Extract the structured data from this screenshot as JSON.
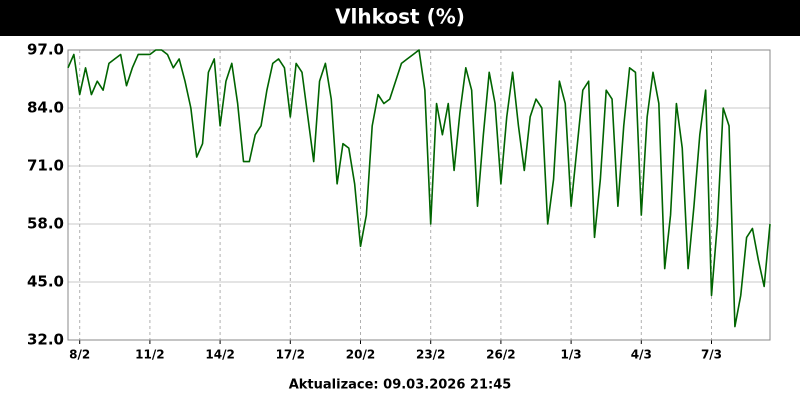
{
  "chart_data": {
    "type": "line",
    "title": "Vlhkost (%)",
    "footer": "Aktualizace: 09.03.2026 21:45",
    "grid": true,
    "ylim": [
      32,
      97
    ],
    "yticks": [
      {
        "value": 32,
        "label": "32.0"
      },
      {
        "value": 45,
        "label": "45.0"
      },
      {
        "value": 58,
        "label": "58.0"
      },
      {
        "value": 71,
        "label": "71.0"
      },
      {
        "value": 84,
        "label": "84.0"
      },
      {
        "value": 97,
        "label": "97.0"
      }
    ],
    "categories": [
      null,
      null,
      "8/2",
      null,
      null,
      null,
      null,
      null,
      null,
      null,
      null,
      null,
      null,
      null,
      "11/2",
      null,
      null,
      null,
      null,
      null,
      null,
      null,
      null,
      null,
      null,
      null,
      "14/2",
      null,
      null,
      null,
      null,
      null,
      null,
      null,
      null,
      null,
      null,
      null,
      "17/2",
      null,
      null,
      null,
      null,
      null,
      null,
      null,
      null,
      null,
      null,
      null,
      "20/2",
      null,
      null,
      null,
      null,
      null,
      null,
      null,
      null,
      null,
      null,
      null,
      "23/2",
      null,
      null,
      null,
      null,
      null,
      null,
      null,
      null,
      null,
      null,
      null,
      "26/2",
      null,
      null,
      null,
      null,
      null,
      null,
      null,
      null,
      null,
      null,
      null,
      "1/3",
      null,
      null,
      null,
      null,
      null,
      null,
      null,
      null,
      null,
      null,
      null,
      "4/3",
      null,
      null,
      null,
      null,
      null,
      null,
      null,
      null,
      null,
      null,
      null,
      "7/3",
      null,
      null,
      null,
      null,
      null,
      null,
      null,
      null,
      null,
      null
    ],
    "series": [
      {
        "color": "#006400",
        "values": [
          93,
          96,
          87,
          93,
          87,
          90,
          88,
          94,
          95,
          96,
          89,
          93,
          96,
          96,
          96,
          97,
          97,
          96,
          93,
          95,
          90,
          84,
          73,
          76,
          92,
          95,
          80,
          90,
          94,
          85,
          72,
          72,
          78,
          80,
          88,
          94,
          95,
          93,
          82,
          94,
          92,
          82,
          72,
          90,
          94,
          86,
          67,
          76,
          75,
          67,
          53,
          60,
          80,
          87,
          85,
          86,
          90,
          94,
          95,
          96,
          97,
          88,
          58,
          85,
          78,
          85,
          70,
          83,
          93,
          88,
          62,
          78,
          92,
          85,
          67,
          82,
          92,
          80,
          70,
          82,
          86,
          84,
          58,
          68,
          90,
          85,
          62,
          75,
          88,
          90,
          55,
          68,
          88,
          86,
          62,
          80,
          93,
          92,
          60,
          82,
          92,
          85,
          48,
          60,
          85,
          75,
          48,
          62,
          78,
          88,
          42,
          58,
          84,
          80,
          35,
          42,
          55,
          57,
          50,
          44,
          58
        ]
      }
    ]
  }
}
